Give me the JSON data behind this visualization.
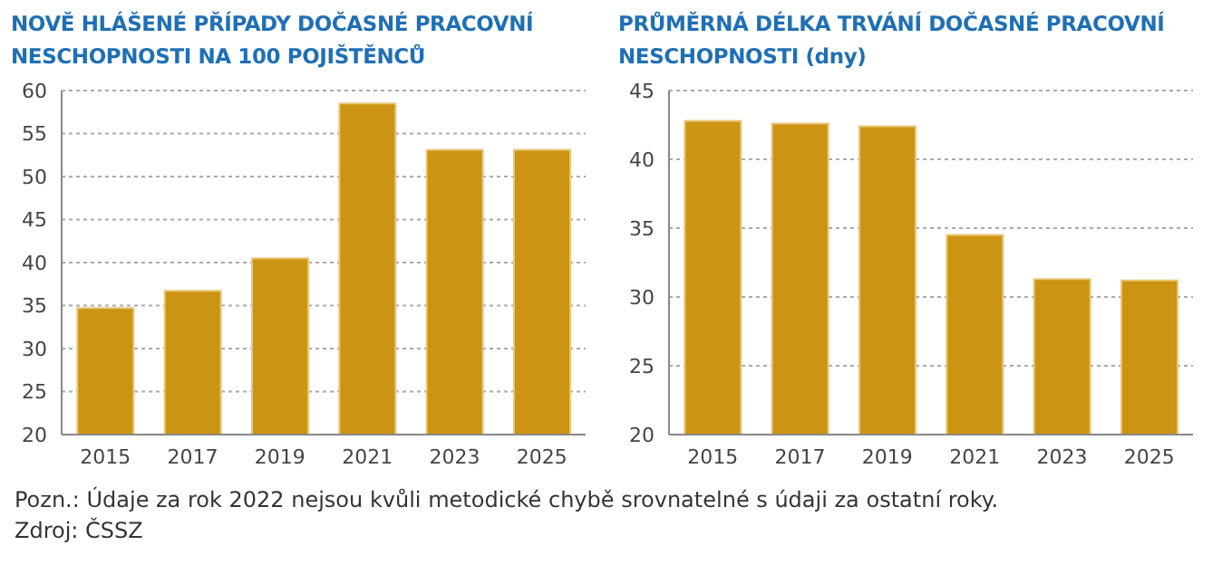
{
  "chart_data": [
    {
      "type": "bar",
      "title": "NOVĚ HLÁŠENÉ PŘÍPADY DOČASNÉ PRACOVNÍ NESCHOPNOSTI NA 100 POJIŠTĚNCŮ",
      "categories": [
        "2015",
        "2017",
        "2019",
        "2021",
        "2023",
        "2025"
      ],
      "values": [
        34.7,
        36.7,
        40.5,
        58.5,
        53.1,
        53.1
      ],
      "color": "#cc9413",
      "ylim": [
        20,
        60
      ],
      "yticks": [
        20,
        25,
        30,
        35,
        40,
        45,
        50,
        55,
        60
      ],
      "grid": "y",
      "annotations": [
        "Pozn.: Údaje za rok 2022 nejsou kvůli metodické chybě srovnatelné s údaji za ostatní roky.",
        "Zdroj: ČSSZ"
      ]
    },
    {
      "type": "bar",
      "title": "PRŮMĚRNÁ DÉLKA TRVÁNÍ DOČASNÉ PRACOVNÍ NESCHOPNOSTI (dny)",
      "categories": [
        "2015",
        "2017",
        "2019",
        "2021",
        "2023",
        "2025"
      ],
      "values": [
        42.8,
        42.6,
        42.4,
        34.5,
        31.3,
        31.2
      ],
      "color": "#cc9413",
      "ylim": [
        20,
        45
      ],
      "yticks": [
        20,
        25,
        30,
        35,
        40,
        45
      ],
      "grid": "y"
    }
  ]
}
